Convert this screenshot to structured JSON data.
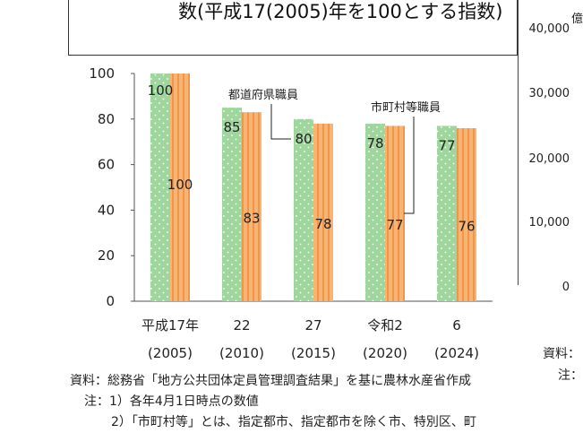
{
  "title": "数(平成17(2005)年を100とする指数)",
  "chart_data": {
    "type": "bar",
    "categories": [
      "平成17年",
      "22",
      "27",
      "令和2",
      "6"
    ],
    "subcategories": [
      "(2005)",
      "(2010)",
      "(2015)",
      "(2020)",
      "(2024)"
    ],
    "series": [
      {
        "name": "都道府県職員",
        "values": [
          100,
          85,
          80,
          78,
          77
        ],
        "color": "#9ed69e"
      },
      {
        "name": "市町村等職員",
        "values": [
          100,
          83,
          78,
          77,
          76
        ],
        "color": "#f5a862"
      }
    ],
    "ylim": [
      0,
      100
    ],
    "yticks": [
      "0",
      "20",
      "40",
      "60",
      "80",
      "100"
    ],
    "right_axis_ticks": [
      "40,000",
      "30,000",
      "20,000",
      "10,000",
      "0"
    ],
    "right_axis_unit": "億"
  },
  "notes": {
    "source": "資料：総務省「地方公共団体定員管理調査結果」を基に農林水産省作成",
    "note1": "注：1）各年4月1日時点の数値",
    "note2": "2）「市町村等」とは、指定都市、指定都市を除く市、特別区、町"
  },
  "side_notes": {
    "source": "資料：",
    "note": "注："
  }
}
